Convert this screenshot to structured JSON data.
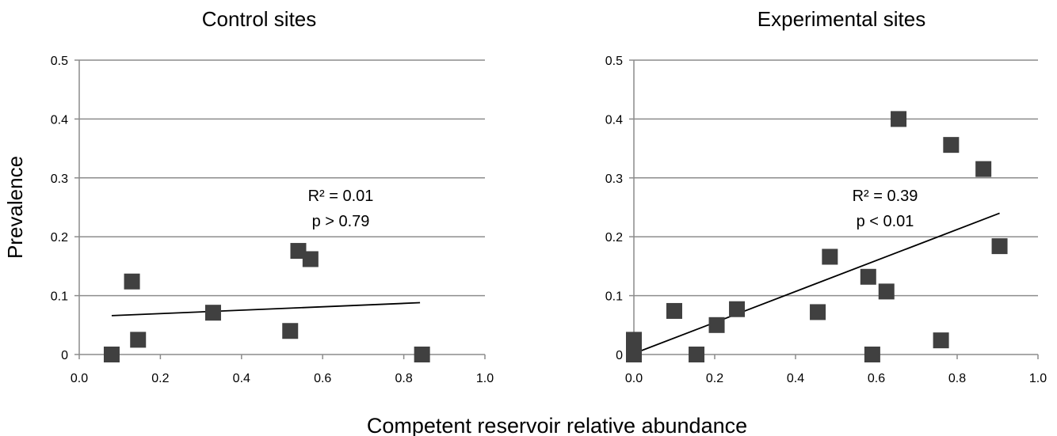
{
  "figure": {
    "ylabel": "Prevalence",
    "xlabel": "Competent reservoir relative abundance"
  },
  "chart_data": [
    {
      "type": "scatter",
      "title": "Control sites",
      "xlim": [
        0.0,
        1.0
      ],
      "ylim": [
        0,
        0.5
      ],
      "x_ticks": [
        "0.0",
        "0.2",
        "0.4",
        "0.6",
        "0.8",
        "1.0"
      ],
      "y_ticks": [
        "0",
        "0.1",
        "0.2",
        "0.3",
        "0.4",
        "0.5"
      ],
      "grid": true,
      "points": [
        {
          "x": 0.08,
          "y": 0.0
        },
        {
          "x": 0.13,
          "y": 0.124
        },
        {
          "x": 0.145,
          "y": 0.025
        },
        {
          "x": 0.33,
          "y": 0.071
        },
        {
          "x": 0.52,
          "y": 0.04
        },
        {
          "x": 0.54,
          "y": 0.176
        },
        {
          "x": 0.57,
          "y": 0.162
        },
        {
          "x": 0.845,
          "y": 0.0
        }
      ],
      "trendline": {
        "x": [
          0.08,
          0.84
        ],
        "y": [
          0.066,
          0.088
        ]
      },
      "annotations": [
        "R² = 0.01",
        "p > 0.79"
      ],
      "marker_color": "#404040"
    },
    {
      "type": "scatter",
      "title": "Experimental sites",
      "xlim": [
        0.0,
        1.0
      ],
      "ylim": [
        0,
        0.5
      ],
      "x_ticks": [
        "0.0",
        "0.2",
        "0.4",
        "0.6",
        "0.8",
        "1.0"
      ],
      "y_ticks": [
        "0",
        "0.1",
        "0.2",
        "0.3",
        "0.4",
        "0.5"
      ],
      "grid": true,
      "points": [
        {
          "x": 0.0,
          "y": 0.0
        },
        {
          "x": 0.0,
          "y": 0.025
        },
        {
          "x": 0.1,
          "y": 0.074
        },
        {
          "x": 0.155,
          "y": 0.0
        },
        {
          "x": 0.205,
          "y": 0.05
        },
        {
          "x": 0.255,
          "y": 0.077
        },
        {
          "x": 0.455,
          "y": 0.072
        },
        {
          "x": 0.485,
          "y": 0.166
        },
        {
          "x": 0.58,
          "y": 0.132
        },
        {
          "x": 0.59,
          "y": 0.0
        },
        {
          "x": 0.625,
          "y": 0.107
        },
        {
          "x": 0.655,
          "y": 0.4
        },
        {
          "x": 0.76,
          "y": 0.024
        },
        {
          "x": 0.785,
          "y": 0.356
        },
        {
          "x": 0.865,
          "y": 0.315
        },
        {
          "x": 0.905,
          "y": 0.184
        }
      ],
      "trendline": {
        "x": [
          0.005,
          0.905
        ],
        "y": [
          0.003,
          0.24
        ]
      },
      "annotations": [
        "R² = 0.39",
        "p < 0.01"
      ],
      "marker_color": "#404040"
    }
  ]
}
